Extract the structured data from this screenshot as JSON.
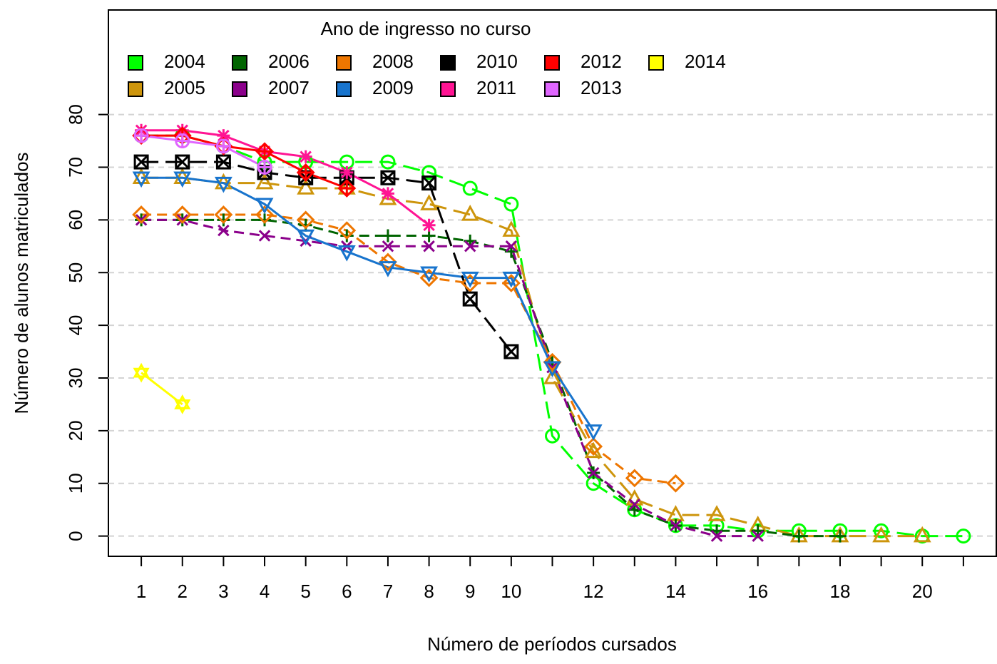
{
  "chart_data": {
    "type": "line",
    "xlabel": "Número de períodos cursados",
    "ylabel": "Número de alunos matriculados",
    "legend_title": "Ano de ingresso no curso",
    "legend": "top-left",
    "grid": true,
    "x": [
      1,
      2,
      3,
      4,
      5,
      6,
      7,
      8,
      9,
      10,
      11,
      12,
      13,
      14,
      15,
      16,
      17,
      18,
      19,
      20,
      21
    ],
    "xlim": [
      0.2,
      21.8
    ],
    "xticks": [
      1,
      2,
      3,
      4,
      5,
      6,
      7,
      8,
      9,
      10,
      12,
      14,
      16,
      18,
      20
    ],
    "xtick_marks": [
      1,
      2,
      3,
      4,
      5,
      6,
      7,
      8,
      9,
      10,
      11,
      12,
      13,
      14,
      15,
      16,
      17,
      18,
      19,
      20,
      21
    ],
    "ylim": [
      -3.84,
      99.84
    ],
    "yticks": [
      0,
      10,
      20,
      30,
      40,
      50,
      60,
      70,
      80
    ],
    "series": [
      {
        "name": "2004",
        "color": "#00ff00",
        "marker": "circle",
        "linestyle": "longdash",
        "values": [
          76,
          76,
          74,
          71,
          71,
          71,
          71,
          69,
          66,
          63,
          19,
          10,
          5,
          2,
          2,
          1,
          1,
          1,
          1,
          0,
          0
        ]
      },
      {
        "name": "2005",
        "color": "#cd950c",
        "marker": "triangle-up",
        "linestyle": "longdash",
        "values": [
          68,
          68,
          67,
          67,
          66,
          66,
          64,
          63,
          61,
          58,
          30,
          16,
          7,
          4,
          4,
          2,
          0,
          0,
          0,
          0,
          null
        ]
      },
      {
        "name": "2006",
        "color": "#006400",
        "marker": "plus",
        "linestyle": "dashed",
        "values": [
          60,
          60,
          60,
          60,
          59,
          57,
          57,
          57,
          56,
          54,
          33,
          12,
          5,
          2,
          1,
          1,
          0,
          0,
          null,
          null,
          null
        ]
      },
      {
        "name": "2007",
        "color": "#8b008b",
        "marker": "cross",
        "linestyle": "dashed",
        "values": [
          60,
          60,
          58,
          57,
          56,
          55,
          55,
          55,
          55,
          55,
          32,
          12,
          6,
          2,
          0,
          0,
          null,
          null,
          null,
          null,
          null
        ]
      },
      {
        "name": "2008",
        "color": "#ee7600",
        "marker": "diamond",
        "linestyle": "dashed",
        "values": [
          61,
          61,
          61,
          61,
          60,
          58,
          52,
          49,
          48,
          48,
          33,
          17,
          11,
          10,
          null,
          null,
          null,
          null,
          null,
          null,
          null
        ]
      },
      {
        "name": "2009",
        "color": "#1874cd",
        "marker": "triangle-down",
        "linestyle": "solid",
        "values": [
          68,
          68,
          67,
          63,
          57,
          54,
          51,
          50,
          49,
          49,
          32,
          20,
          null,
          null,
          null,
          null,
          null,
          null,
          null,
          null,
          null
        ]
      },
      {
        "name": "2010",
        "color": "#000000",
        "marker": "square-x",
        "linestyle": "longdash",
        "values": [
          71,
          71,
          71,
          69,
          68,
          68,
          68,
          67,
          45,
          35,
          null,
          null,
          null,
          null,
          null,
          null,
          null,
          null,
          null,
          null,
          null
        ]
      },
      {
        "name": "2011",
        "color": "#ff1493",
        "marker": "asterisk",
        "linestyle": "solid",
        "values": [
          77,
          77,
          76,
          73,
          72,
          69,
          65,
          59,
          null,
          null,
          null,
          null,
          null,
          null,
          null,
          null,
          null,
          null,
          null,
          null,
          null
        ]
      },
      {
        "name": "2012",
        "color": "#ff0000",
        "marker": "diamond-plus",
        "linestyle": "solid",
        "values": [
          76,
          76,
          74,
          73,
          69,
          66,
          null,
          null,
          null,
          null,
          null,
          null,
          null,
          null,
          null,
          null,
          null,
          null,
          null,
          null,
          null
        ]
      },
      {
        "name": "2013",
        "color": "#e066ff",
        "marker": "circle-plus",
        "linestyle": "solid",
        "values": [
          76,
          75,
          74,
          70,
          null,
          null,
          null,
          null,
          null,
          null,
          null,
          null,
          null,
          null,
          null,
          null,
          null,
          null,
          null,
          null,
          null
        ]
      },
      {
        "name": "2014",
        "color": "#ffff00",
        "marker": "star",
        "linestyle": "solid",
        "values": [
          31,
          25,
          null,
          null,
          null,
          null,
          null,
          null,
          null,
          null,
          null,
          null,
          null,
          null,
          null,
          null,
          null,
          null,
          null,
          null,
          null
        ]
      }
    ]
  }
}
